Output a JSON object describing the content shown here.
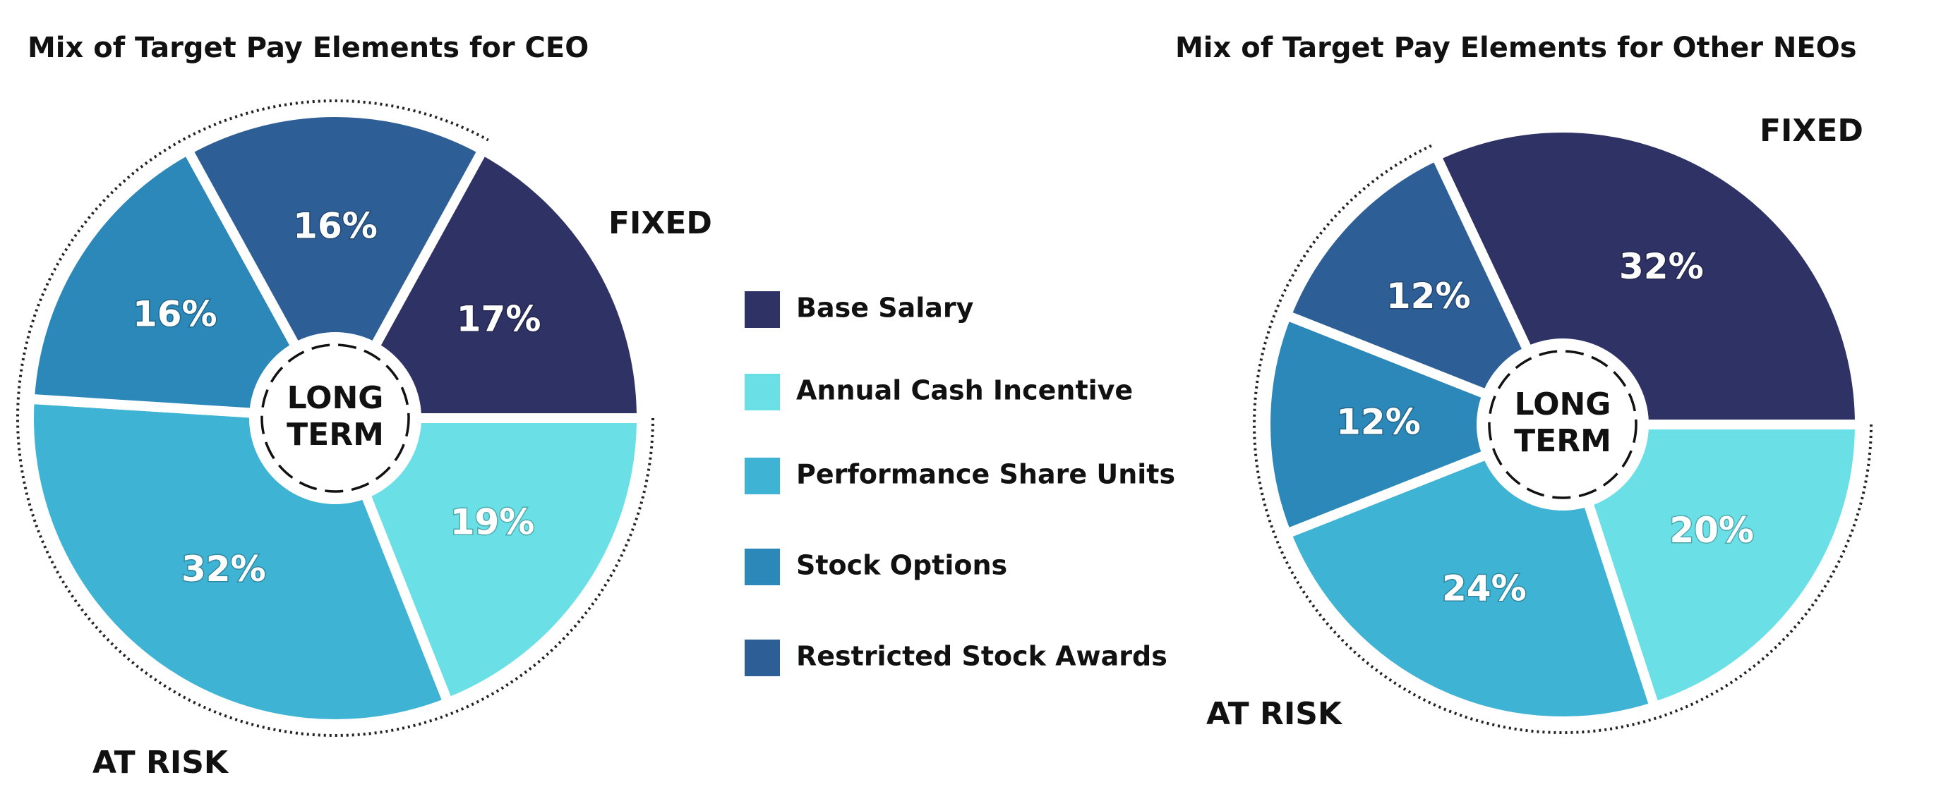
{
  "chart_data": [
    {
      "type": "pie",
      "title": "Mix of Target Pay Elements for CEO",
      "values": [
        17,
        19,
        32,
        16,
        16
      ],
      "value_labels": [
        "17%",
        "19%",
        "32%",
        "16%",
        "16%"
      ],
      "colors": [
        "#2e3264",
        "#6ae0e6",
        "#3fb3d4",
        "#2b88b8",
        "#2d5f96"
      ],
      "center_label": "LONG TERM",
      "annotations": [
        "FIXED",
        "AT RISK"
      ]
    },
    {
      "type": "pie",
      "title": "Mix of Target Pay Elements for Other NEOs",
      "values": [
        32,
        20,
        24,
        12,
        12
      ],
      "value_labels": [
        "32%",
        "20%",
        "24%",
        "12%",
        "12%"
      ],
      "colors": [
        "#2e3264",
        "#6ae0e6",
        "#3fb3d4",
        "#2b88b8",
        "#2d5f96"
      ],
      "center_label": "LONG TERM",
      "annotations": [
        "FIXED",
        "AT RISK"
      ]
    }
  ],
  "legend": {
    "labels": [
      "Base Salary",
      "Annual Cash Incentive",
      "Performance Share Units",
      "Stock Options",
      "Restricted Stock Awards"
    ],
    "colors": [
      "#2e3264",
      "#6ae0e6",
      "#3fb3d4",
      "#2b88b8",
      "#2d5f96"
    ]
  }
}
